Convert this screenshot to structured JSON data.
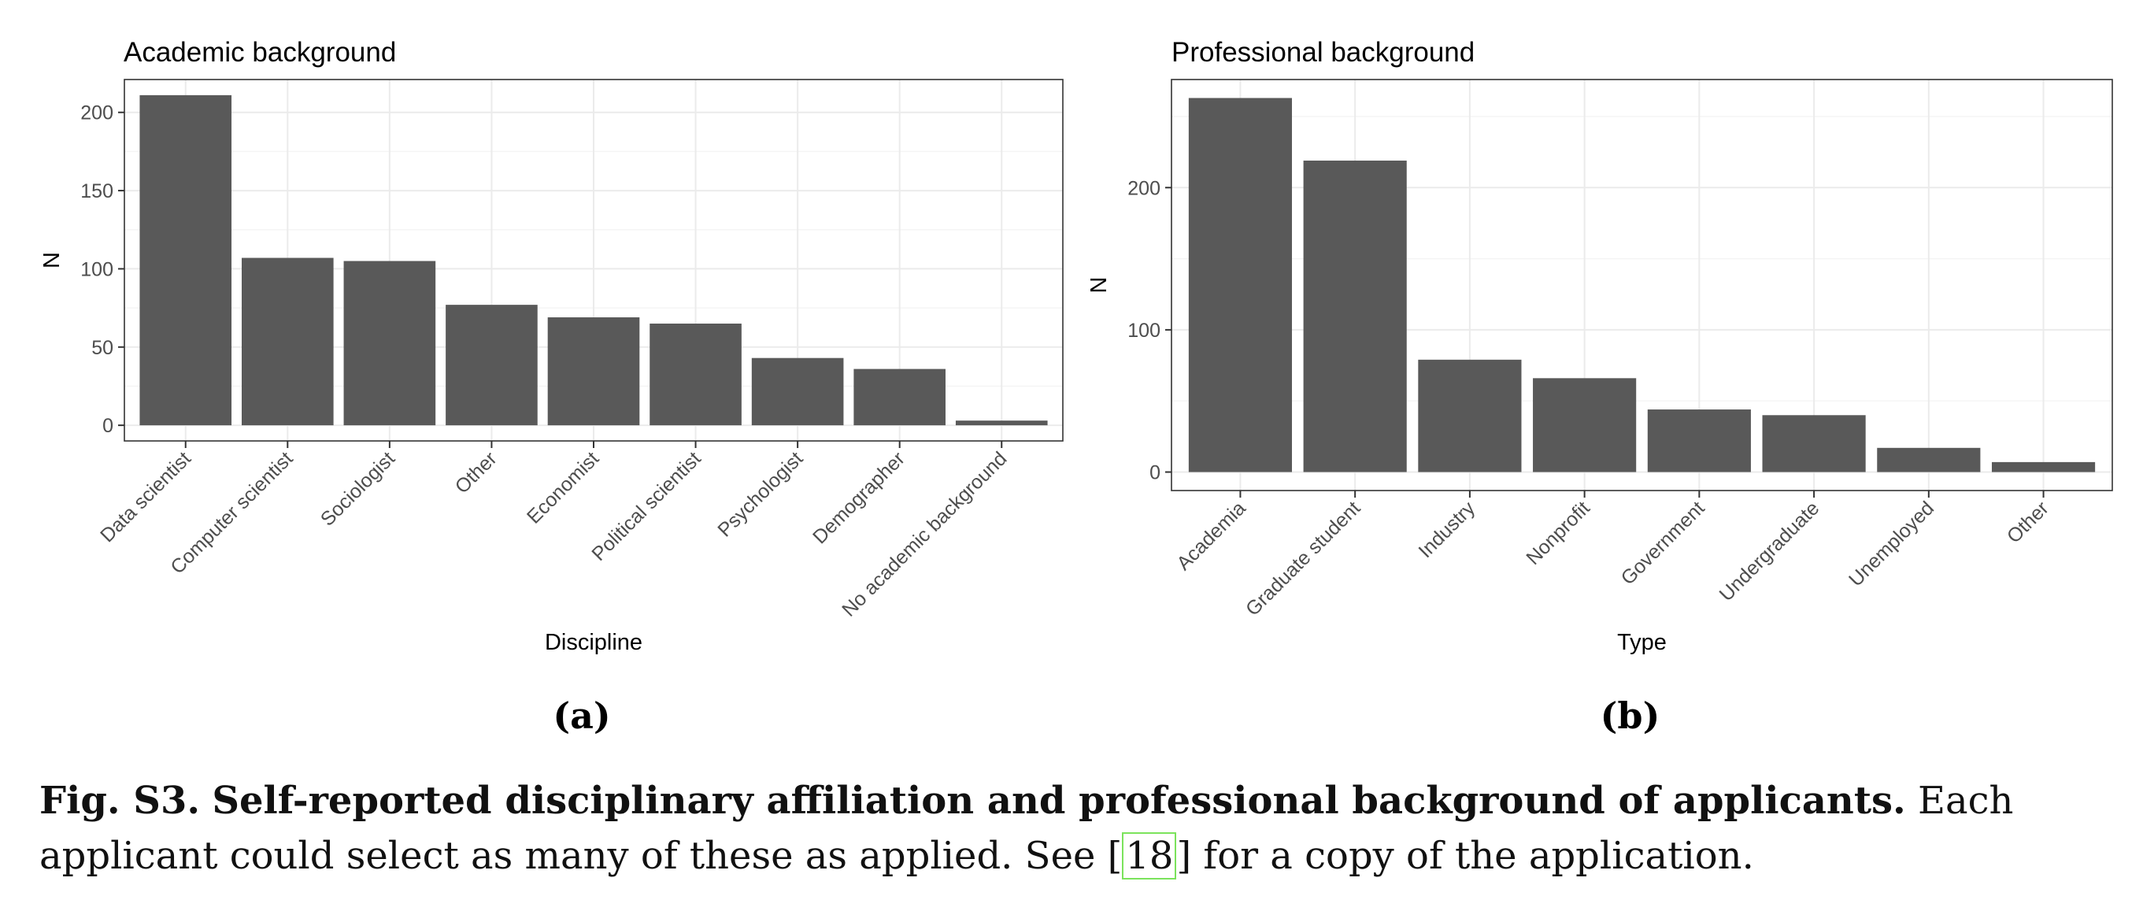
{
  "chart_data": [
    {
      "type": "bar",
      "title": "Academic background",
      "xlabel": "Discipline",
      "ylabel": "N",
      "categories": [
        "Data scientist",
        "Computer scientist",
        "Sociologist",
        "Other",
        "Economist",
        "Political scientist",
        "Psychologist",
        "Demographer",
        "No academic background"
      ],
      "values": [
        211,
        107,
        105,
        77,
        69,
        65,
        43,
        36,
        3
      ],
      "ylim": [
        -10,
        221
      ],
      "yticks": [
        "0",
        "50",
        "100",
        "150",
        "200"
      ],
      "grid": true,
      "panel_label": "(a)"
    },
    {
      "type": "bar",
      "title": "Professional background",
      "xlabel": "Type",
      "ylabel": "N",
      "categories": [
        "Academia",
        "Graduate student",
        "Industry",
        "Nonprofit",
        "Government",
        "Undergraduate",
        "Unemployed",
        "Other"
      ],
      "values": [
        263,
        219,
        79,
        66,
        44,
        40,
        17,
        7
      ],
      "ylim": [
        -13,
        276
      ],
      "yticks": [
        "0",
        "100",
        "200"
      ],
      "grid": true,
      "panel_label": "(b)"
    }
  ],
  "caption": {
    "label": "Fig. S3.",
    "title": "Self-reported disciplinary affiliation and professional background of applicants.",
    "text_before_ref": "Each applicant could select as many of these as applied. See [",
    "ref": "18",
    "text_after_ref": "] for a copy of the application."
  }
}
